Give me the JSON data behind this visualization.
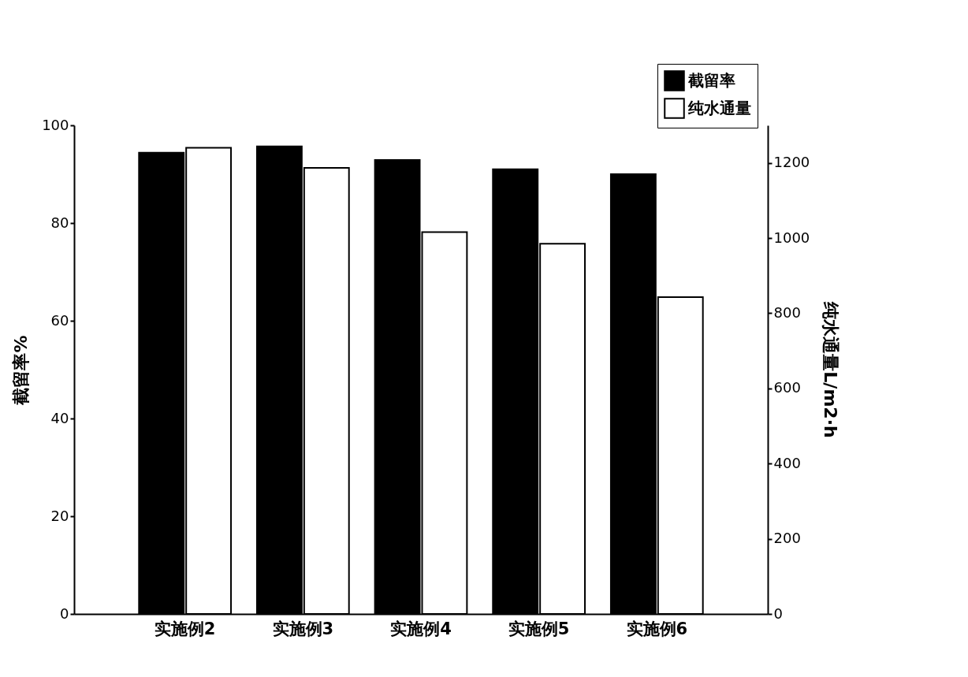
{
  "chart_data": {
    "type": "bar",
    "categories": [
      "实施例2",
      "实施例3",
      "实施例4",
      "实施例5",
      "实施例6"
    ],
    "ylabel": "截留率%",
    "y2label": "纯水通量L/m2·h",
    "ylim": [
      0,
      100
    ],
    "yticks": [
      0,
      20,
      40,
      60,
      80,
      100
    ],
    "y2lim": [
      0,
      1300
    ],
    "y2ticks": [
      0,
      200,
      400,
      600,
      800,
      1000,
      1200
    ],
    "legend": "top right",
    "grid": false,
    "series": [
      {
        "name": "截留率",
        "color": "#000000",
        "values": [
          94.4,
          95.7,
          92.9,
          91.0,
          90.0
        ]
      },
      {
        "name": "纯水通量",
        "color": "#ffffff",
        "axis": "y2",
        "values": [
          1240,
          1187,
          1016,
          985,
          843
        ]
      }
    ]
  }
}
